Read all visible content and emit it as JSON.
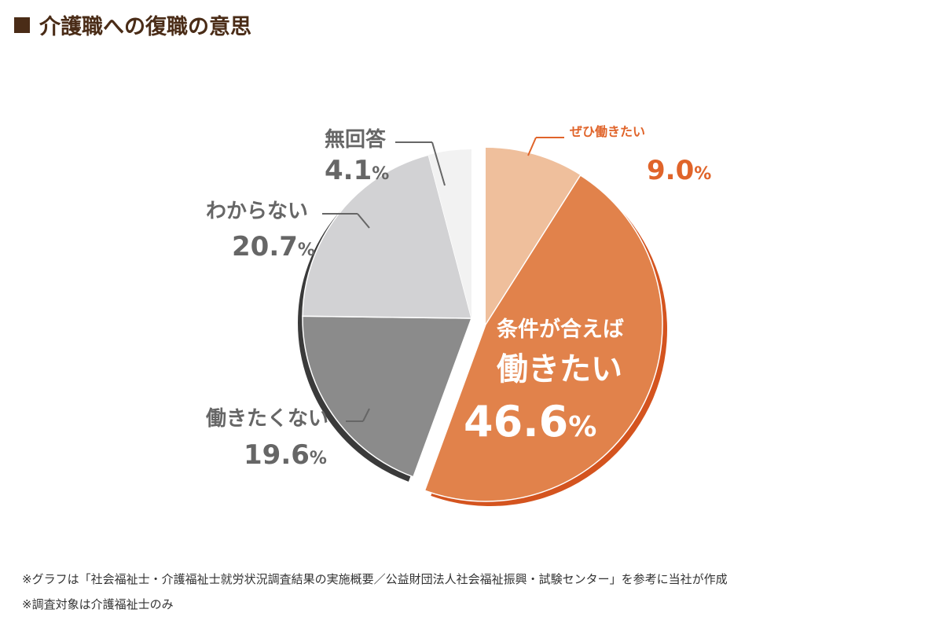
{
  "title": "介護職への復職の意思",
  "chart_data": {
    "type": "pie",
    "title": "介護職への復職の意思",
    "unit": "%",
    "series": [
      {
        "name": "ぜひ働きたい",
        "value": 9.0,
        "color": "#efbf9c"
      },
      {
        "name": "条件が合えば働きたい",
        "value": 46.6,
        "color": "#e1824b"
      },
      {
        "name": "働きたくない",
        "value": 19.6,
        "color": "#8b8b8b"
      },
      {
        "name": "わからない",
        "value": 20.7,
        "color": "#d2d2d4"
      },
      {
        "name": "無回答",
        "value": 4.1,
        "color": "#f2f2f2"
      }
    ],
    "labels": {
      "zehi_cat": "ぜひ働きたい",
      "zehi_num": "9.0",
      "jouken_cat1": "条件が合えば",
      "jouken_cat2": "働きたい",
      "jouken_num": "46.6",
      "hataraki_cat": "働きたくない",
      "hataraki_num": "19.6",
      "wakaranai_cat": "わからない",
      "wakaranai_num": "20.7",
      "mukaitou_cat": "無回答",
      "mukaitou_num": "4.1",
      "pct_sign": "%"
    }
  },
  "footnotes": [
    "※グラフは「社会福祉士・介護福祉士就労状況調査結果の実施概要／公益財団法人社会福祉振興・試験センター」を参考に当社が作成",
    "※調査対象は介護福祉士のみ"
  ]
}
